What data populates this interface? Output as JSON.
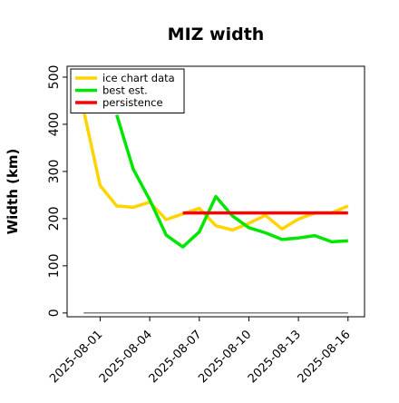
{
  "chart_data": {
    "type": "line",
    "title": "MIZ width",
    "xlabel": "",
    "ylabel": "Width (km)",
    "x_range": [
      "2025-07-30",
      "2025-08-17"
    ],
    "ylim": [
      -8,
      523
    ],
    "x_ticks": [
      "2025-08-01",
      "2025-08-04",
      "2025-08-07",
      "2025-08-10",
      "2025-08-13",
      "2025-08-16"
    ],
    "y_ticks": [
      0,
      100,
      200,
      300,
      400,
      500
    ],
    "grid": false,
    "legend_position": "upper-left",
    "series": [
      {
        "name": "ice chart data",
        "color": "#FFD400",
        "x": [
          "2025-07-31",
          "2025-08-01",
          "2025-08-02",
          "2025-08-03",
          "2025-08-04",
          "2025-08-05",
          "2025-08-06",
          "2025-08-07",
          "2025-08-08",
          "2025-08-09",
          "2025-08-10",
          "2025-08-11",
          "2025-08-12",
          "2025-08-13",
          "2025-08-14",
          "2025-08-15",
          "2025-08-16"
        ],
        "y": [
          430,
          270,
          227,
          224,
          235,
          198,
          210,
          222,
          185,
          176,
          190,
          207,
          178,
          199,
          212,
          212,
          227
        ]
      },
      {
        "name": "best est.",
        "color": "#00E600",
        "x": [
          "2025-08-02",
          "2025-08-03",
          "2025-08-04",
          "2025-08-05",
          "2025-08-06",
          "2025-08-07",
          "2025-08-08",
          "2025-08-09",
          "2025-08-10",
          "2025-08-11",
          "2025-08-12",
          "2025-08-13",
          "2025-08-14",
          "2025-08-15",
          "2025-08-16"
        ],
        "y": [
          420,
          305,
          240,
          165,
          140,
          172,
          247,
          206,
          181,
          170,
          156,
          159,
          164,
          151,
          153
        ]
      },
      {
        "name": "persistence",
        "color": "#FF0000",
        "x": [
          "2025-08-06",
          "2025-08-16"
        ],
        "y": [
          212,
          212
        ]
      },
      {
        "color": "#808080",
        "x": [
          "2025-07-31",
          "2025-08-16"
        ],
        "y": [
          0,
          0
        ]
      }
    ]
  }
}
